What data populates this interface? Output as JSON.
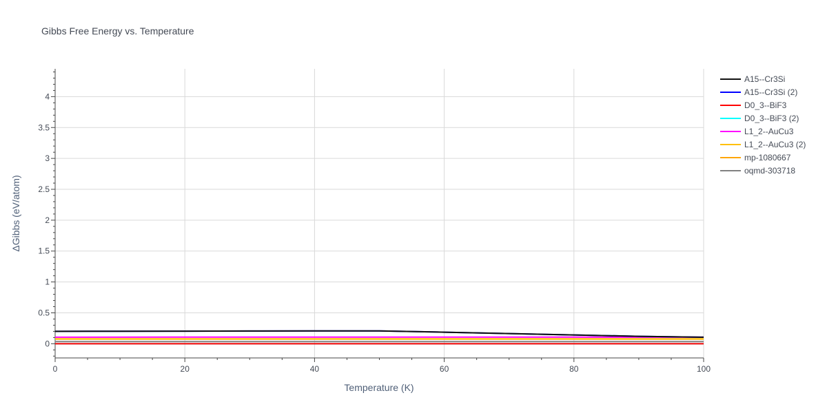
{
  "chart_data": {
    "type": "line",
    "title": "Gibbs Free Energy vs. Temperature",
    "xlabel": "Temperature (K)",
    "ylabel": "ΔGibbs (eV/atom)",
    "xlim": [
      0,
      100
    ],
    "ylim": [
      -0.23,
      4.45
    ],
    "xticks": [
      0,
      20,
      40,
      60,
      80,
      100
    ],
    "yticks": [
      0,
      0.5,
      1,
      1.5,
      2,
      2.5,
      3,
      3.5,
      4
    ],
    "grid": true,
    "legend_position": "top-right",
    "series": [
      {
        "name": "A15--Cr3Si",
        "color": "#111111",
        "x": [
          0,
          10,
          20,
          30,
          40,
          50,
          60,
          70,
          80,
          90,
          100
        ],
        "y": [
          0.2,
          0.202,
          0.204,
          0.206,
          0.207,
          0.208,
          0.187,
          0.165,
          0.142,
          0.12,
          0.105
        ]
      },
      {
        "name": "A15--Cr3Si (2)",
        "color": "#0000ff",
        "x": [
          0,
          10,
          20,
          30,
          40,
          50,
          60,
          70,
          80,
          90,
          100
        ],
        "y": [
          0.2,
          0.202,
          0.204,
          0.206,
          0.207,
          0.208,
          0.187,
          0.165,
          0.142,
          0.12,
          0.105
        ]
      },
      {
        "name": "D0_3--BiF3",
        "color": "#ff0000",
        "x": [
          0,
          100
        ],
        "y": [
          0.0,
          0.0
        ]
      },
      {
        "name": "D0_3--BiF3 (2)",
        "color": "#00ffff",
        "x": [
          0,
          100
        ],
        "y": [
          0.0,
          0.0
        ]
      },
      {
        "name": "L1_2--AuCu3",
        "color": "#ff00ff",
        "x": [
          0,
          20,
          40,
          60,
          80,
          100
        ],
        "y": [
          0.105,
          0.106,
          0.107,
          0.107,
          0.106,
          0.105
        ]
      },
      {
        "name": "L1_2--AuCu3 (2)",
        "color": "#ffc000",
        "x": [
          0,
          100
        ],
        "y": [
          0.08,
          0.08
        ]
      },
      {
        "name": "mp-1080667",
        "color": "#ffa500",
        "x": [
          0,
          100
        ],
        "y": [
          0.075,
          0.075
        ]
      },
      {
        "name": "oqmd-303718",
        "color": "#808080",
        "x": [
          0,
          100
        ],
        "y": [
          0.035,
          0.035
        ]
      }
    ]
  }
}
